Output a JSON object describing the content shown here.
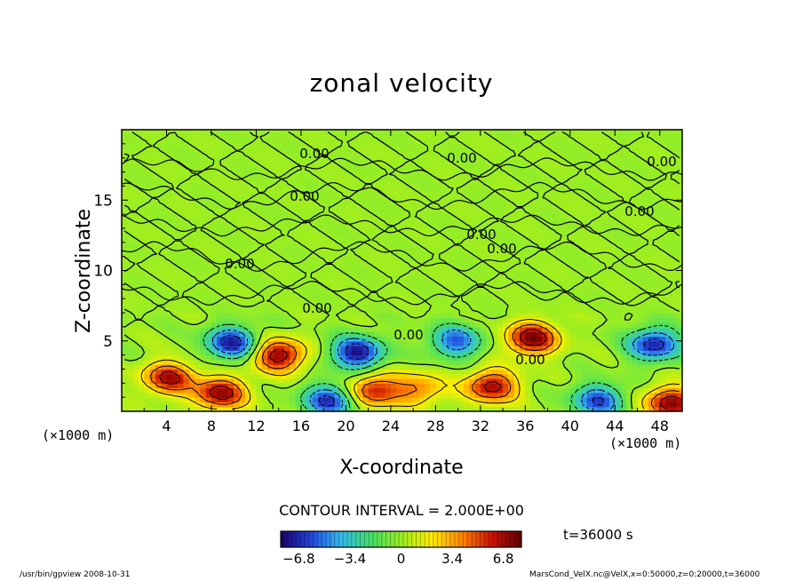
{
  "chart_data": {
    "type": "heatmap",
    "title": "zonal velocity",
    "xlabel": "X-coordinate",
    "ylabel": "Z-coordinate",
    "x_unit_label": "(×1000 m)",
    "xlim": [
      0,
      50
    ],
    "ylim": [
      0,
      20
    ],
    "x_ticks": [
      "4",
      "8",
      "12",
      "16",
      "20",
      "24",
      "28",
      "32",
      "36",
      "40",
      "44",
      "48"
    ],
    "y_ticks": [
      "5",
      "10",
      "15"
    ],
    "contour_labels": [
      "0.00",
      "0.00",
      "0.00",
      "0.00",
      "0.00",
      "0.00",
      "0.00",
      "0.00",
      "0.00",
      "0.00",
      "0.00"
    ],
    "contour_interval_text": "CONTOUR INTERVAL = 2.000E+00",
    "colorbar": {
      "range": [
        -8,
        8
      ],
      "tick_labels": [
        "−6.8",
        "−3.4",
        "0",
        "3.4",
        "6.8"
      ],
      "colormap": [
        "#1a0066",
        "#2244dd",
        "#33bbee",
        "#44dd66",
        "#99ee22",
        "#ffee00",
        "#ff8800",
        "#cc1100",
        "#660000"
      ]
    },
    "features": [
      {
        "x": 9.8,
        "z": 4.9,
        "value": -7.0
      },
      {
        "x": 14.0,
        "z": 4.0,
        "value": 7.2
      },
      {
        "x": 21.0,
        "z": 4.2,
        "value": -7.5
      },
      {
        "x": 4.2,
        "z": 2.4,
        "value": 6.5
      },
      {
        "x": 8.8,
        "z": 1.3,
        "value": 7.0
      },
      {
        "x": 33.0,
        "z": 1.8,
        "value": 6.8
      },
      {
        "x": 29.8,
        "z": 5.0,
        "value": -5.5
      },
      {
        "x": 36.6,
        "z": 5.2,
        "value": 7.5
      },
      {
        "x": 47.5,
        "z": 4.8,
        "value": -7.0
      },
      {
        "x": 18.5,
        "z": 0.8,
        "value": -6.5
      },
      {
        "x": 42.5,
        "z": 0.8,
        "value": -6.0
      },
      {
        "x": 49.0,
        "z": 0.6,
        "value": 7.2
      },
      {
        "x": 26.5,
        "z": 1.6,
        "value": 4.0
      },
      {
        "x": 22.5,
        "z": 1.5,
        "value": 6.0
      }
    ]
  },
  "labels": {
    "time": "t=36000 s",
    "footer_left": "/usr/bin/gpview   2008-10-31",
    "footer_right": "MarsCond_VelX.nc@VelX,x=0:50000,z=0:20000,t=36000"
  },
  "colors": {
    "background_green": "#55d444",
    "contour_line": "#000000"
  }
}
